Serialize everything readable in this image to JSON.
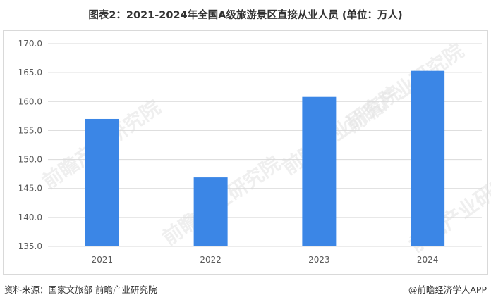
{
  "title": "图表2：2021-2024年全国A级旅游景区直接从业人员 (单位：万人)",
  "watermark_text": "前瞻产业研究院",
  "footer": {
    "source": "资料来源：国家文旅部 前瞻产业研究院",
    "brand": "@前瞻经济学人APP"
  },
  "colors": {
    "bar": "#3b86e6",
    "grid": "#d9d9d9",
    "tick_text": "#595959"
  },
  "chart_data": {
    "type": "bar",
    "categories": [
      "2021",
      "2022",
      "2023",
      "2024"
    ],
    "values": [
      157.0,
      146.9,
      160.8,
      165.3
    ],
    "ylim": [
      135.0,
      170.0
    ],
    "yticks": [
      "135.0",
      "140.0",
      "145.0",
      "150.0",
      "155.0",
      "160.0",
      "165.0",
      "170.0"
    ],
    "grid": true,
    "legend": false,
    "xlabel": "",
    "ylabel": ""
  }
}
